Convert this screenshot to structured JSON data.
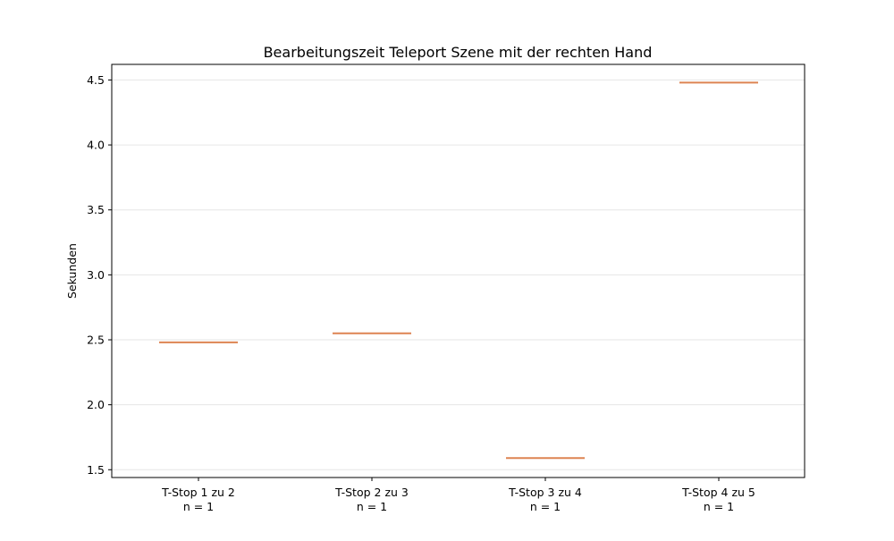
{
  "chart_data": {
    "type": "box",
    "title": "Bearbeitungszeit Teleport Szene mit der rechten Hand",
    "xlabel": "",
    "ylabel": "Sekunden",
    "ylim": [
      1.44,
      4.62
    ],
    "yticks": [
      "1.5",
      "2.0",
      "2.5",
      "3.0",
      "3.5",
      "4.0",
      "4.5"
    ],
    "grid": {
      "y": true,
      "x": false
    },
    "categories": [
      {
        "label": "T-Stop 1 zu 2",
        "n_label": "n = 1",
        "value": 2.48
      },
      {
        "label": "T-Stop 2 zu 3",
        "n_label": "n = 1",
        "value": 2.55
      },
      {
        "label": "T-Stop 3 zu 4",
        "n_label": "n = 1",
        "value": 1.59
      },
      {
        "label": "T-Stop 4 zu 5",
        "n_label": "n = 1",
        "value": 4.48
      }
    ],
    "colors": {
      "median": "#dd8452",
      "box": "#1f1f1f",
      "grid": "#e6e6e6",
      "axis": "#000000"
    }
  }
}
